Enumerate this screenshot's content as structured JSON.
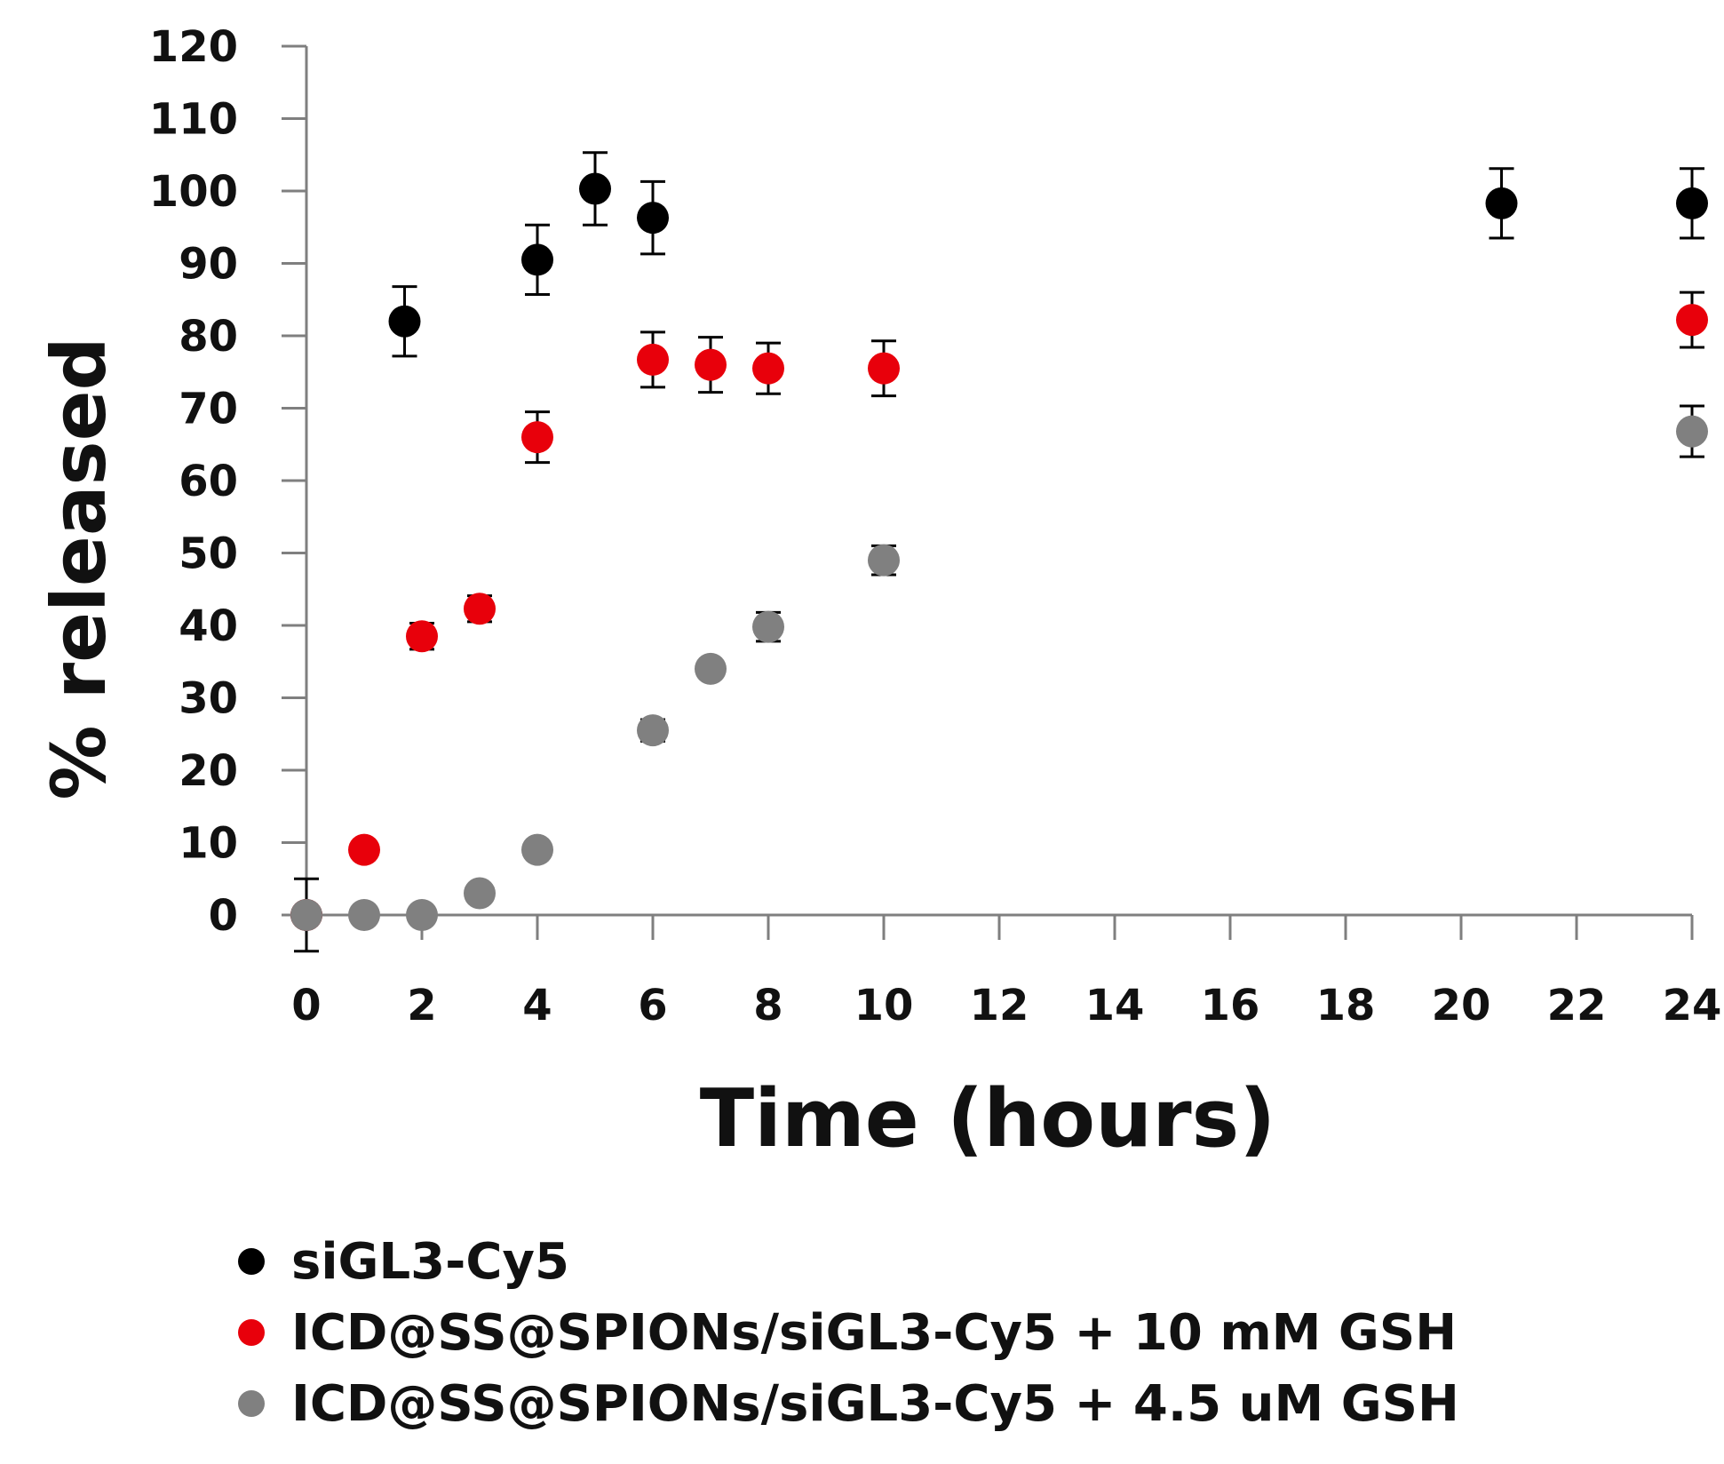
{
  "chart_data": {
    "type": "scatter",
    "title": "",
    "xlabel": "Time (hours)",
    "ylabel": "% released",
    "xlim": [
      0,
      24
    ],
    "ylim": [
      0,
      120
    ],
    "xticks": [
      0,
      2,
      4,
      6,
      8,
      10,
      12,
      14,
      16,
      18,
      20,
      22,
      24
    ],
    "yticks": [
      0,
      10,
      20,
      30,
      40,
      50,
      60,
      70,
      80,
      90,
      100,
      110,
      120
    ],
    "grid": false,
    "legend_position": "bottom",
    "series": [
      {
        "name": "siGL3-Cy5",
        "color": "#000000",
        "x": [
          0,
          1.7,
          4,
          5,
          6,
          20.7,
          24
        ],
        "y": [
          0,
          82,
          90.5,
          100.3,
          96.3,
          98.3,
          98.3
        ],
        "err": [
          5,
          4.8,
          4.8,
          5,
          5,
          4.8,
          4.8
        ]
      },
      {
        "name": "ICD@SS@SPIONs/siGL3-Cy5 + 10 mM GSH",
        "color": "#e8000b",
        "x": [
          0,
          1,
          2,
          3,
          4,
          6,
          7,
          8,
          10,
          24
        ],
        "y": [
          0,
          9,
          38.5,
          42.3,
          66,
          76.7,
          76,
          75.5,
          75.5,
          82.2
        ],
        "err": [
          0,
          0,
          1.8,
          1.8,
          3.5,
          3.8,
          3.8,
          3.5,
          3.8,
          3.8
        ]
      },
      {
        "name": "ICD@SS@SPIONs/siGL3-Cy5 + 4.5 uM GSH",
        "color": "#808080",
        "x": [
          0,
          1,
          2,
          3,
          4,
          6,
          7,
          8,
          10,
          24
        ],
        "y": [
          0,
          0,
          0,
          3,
          9,
          25.5,
          34,
          39.8,
          49,
          66.8
        ],
        "err": [
          0,
          0,
          0,
          0,
          0,
          1.5,
          0,
          2,
          2,
          3.5
        ]
      }
    ]
  }
}
